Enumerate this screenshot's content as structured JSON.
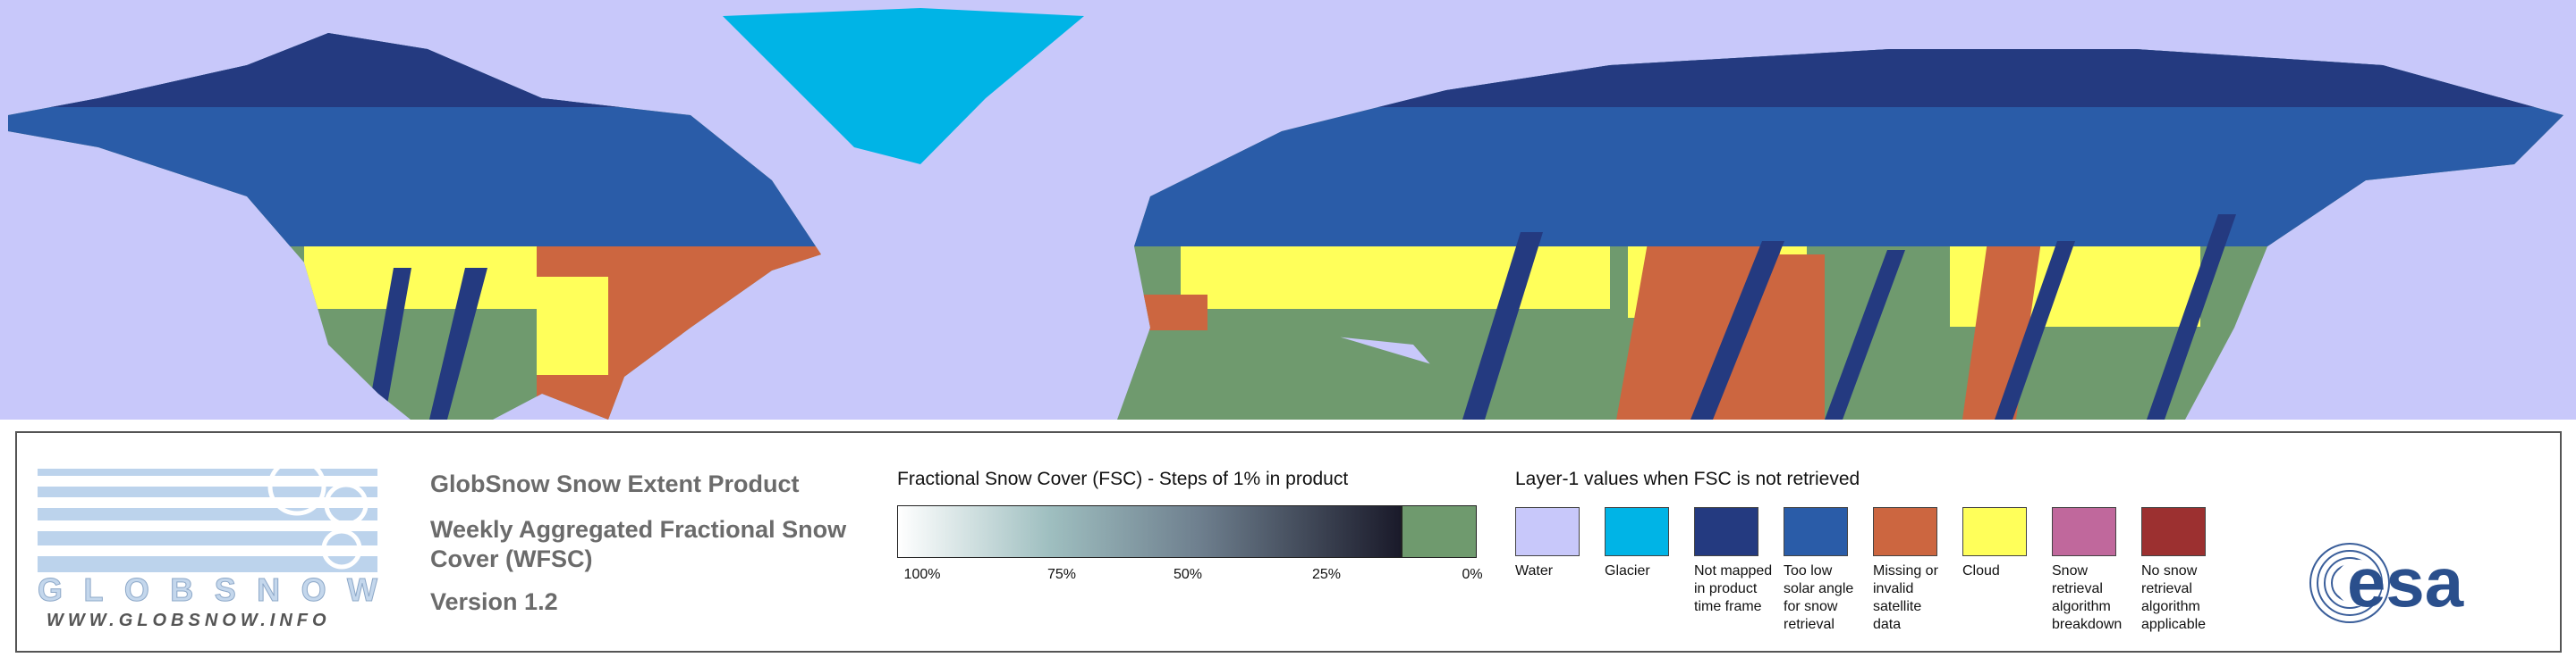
{
  "product": {
    "title": "GlobSnow Snow Extent Product",
    "subtitle": "Weekly Aggregated Fractional Snow Cover (WFSC)",
    "version": "Version 1.2"
  },
  "logo": {
    "name": "GLOBSNOW",
    "url": "WWW.GLOBSNOW.INFO"
  },
  "agency": "esa",
  "fsc_legend": {
    "title": "Fractional Snow Cover (FSC) - Steps of 1% in product",
    "ticks": [
      "100%",
      "75%",
      "50%",
      "25%",
      "0%"
    ]
  },
  "layer1_legend": {
    "title": "Layer-1 values when FSC is not retrieved",
    "items": [
      {
        "label": "Water",
        "color": "#c8c8fa"
      },
      {
        "label": "Glacier",
        "color": "#00b4e6"
      },
      {
        "label": "Not mapped in product time frame",
        "color": "#243a80"
      },
      {
        "label": "Too low solar angle for snow retrieval",
        "color": "#2a5ca8"
      },
      {
        "label": "Missing or invalid satellite data",
        "color": "#cc6640"
      },
      {
        "label": "Cloud",
        "color": "#ffff5a"
      },
      {
        "label": "Snow retrieval algorithm breakdown",
        "color": "#c0689c"
      },
      {
        "label": "No snow retrieval algorithm applicable",
        "color": "#9c3030"
      }
    ]
  }
}
